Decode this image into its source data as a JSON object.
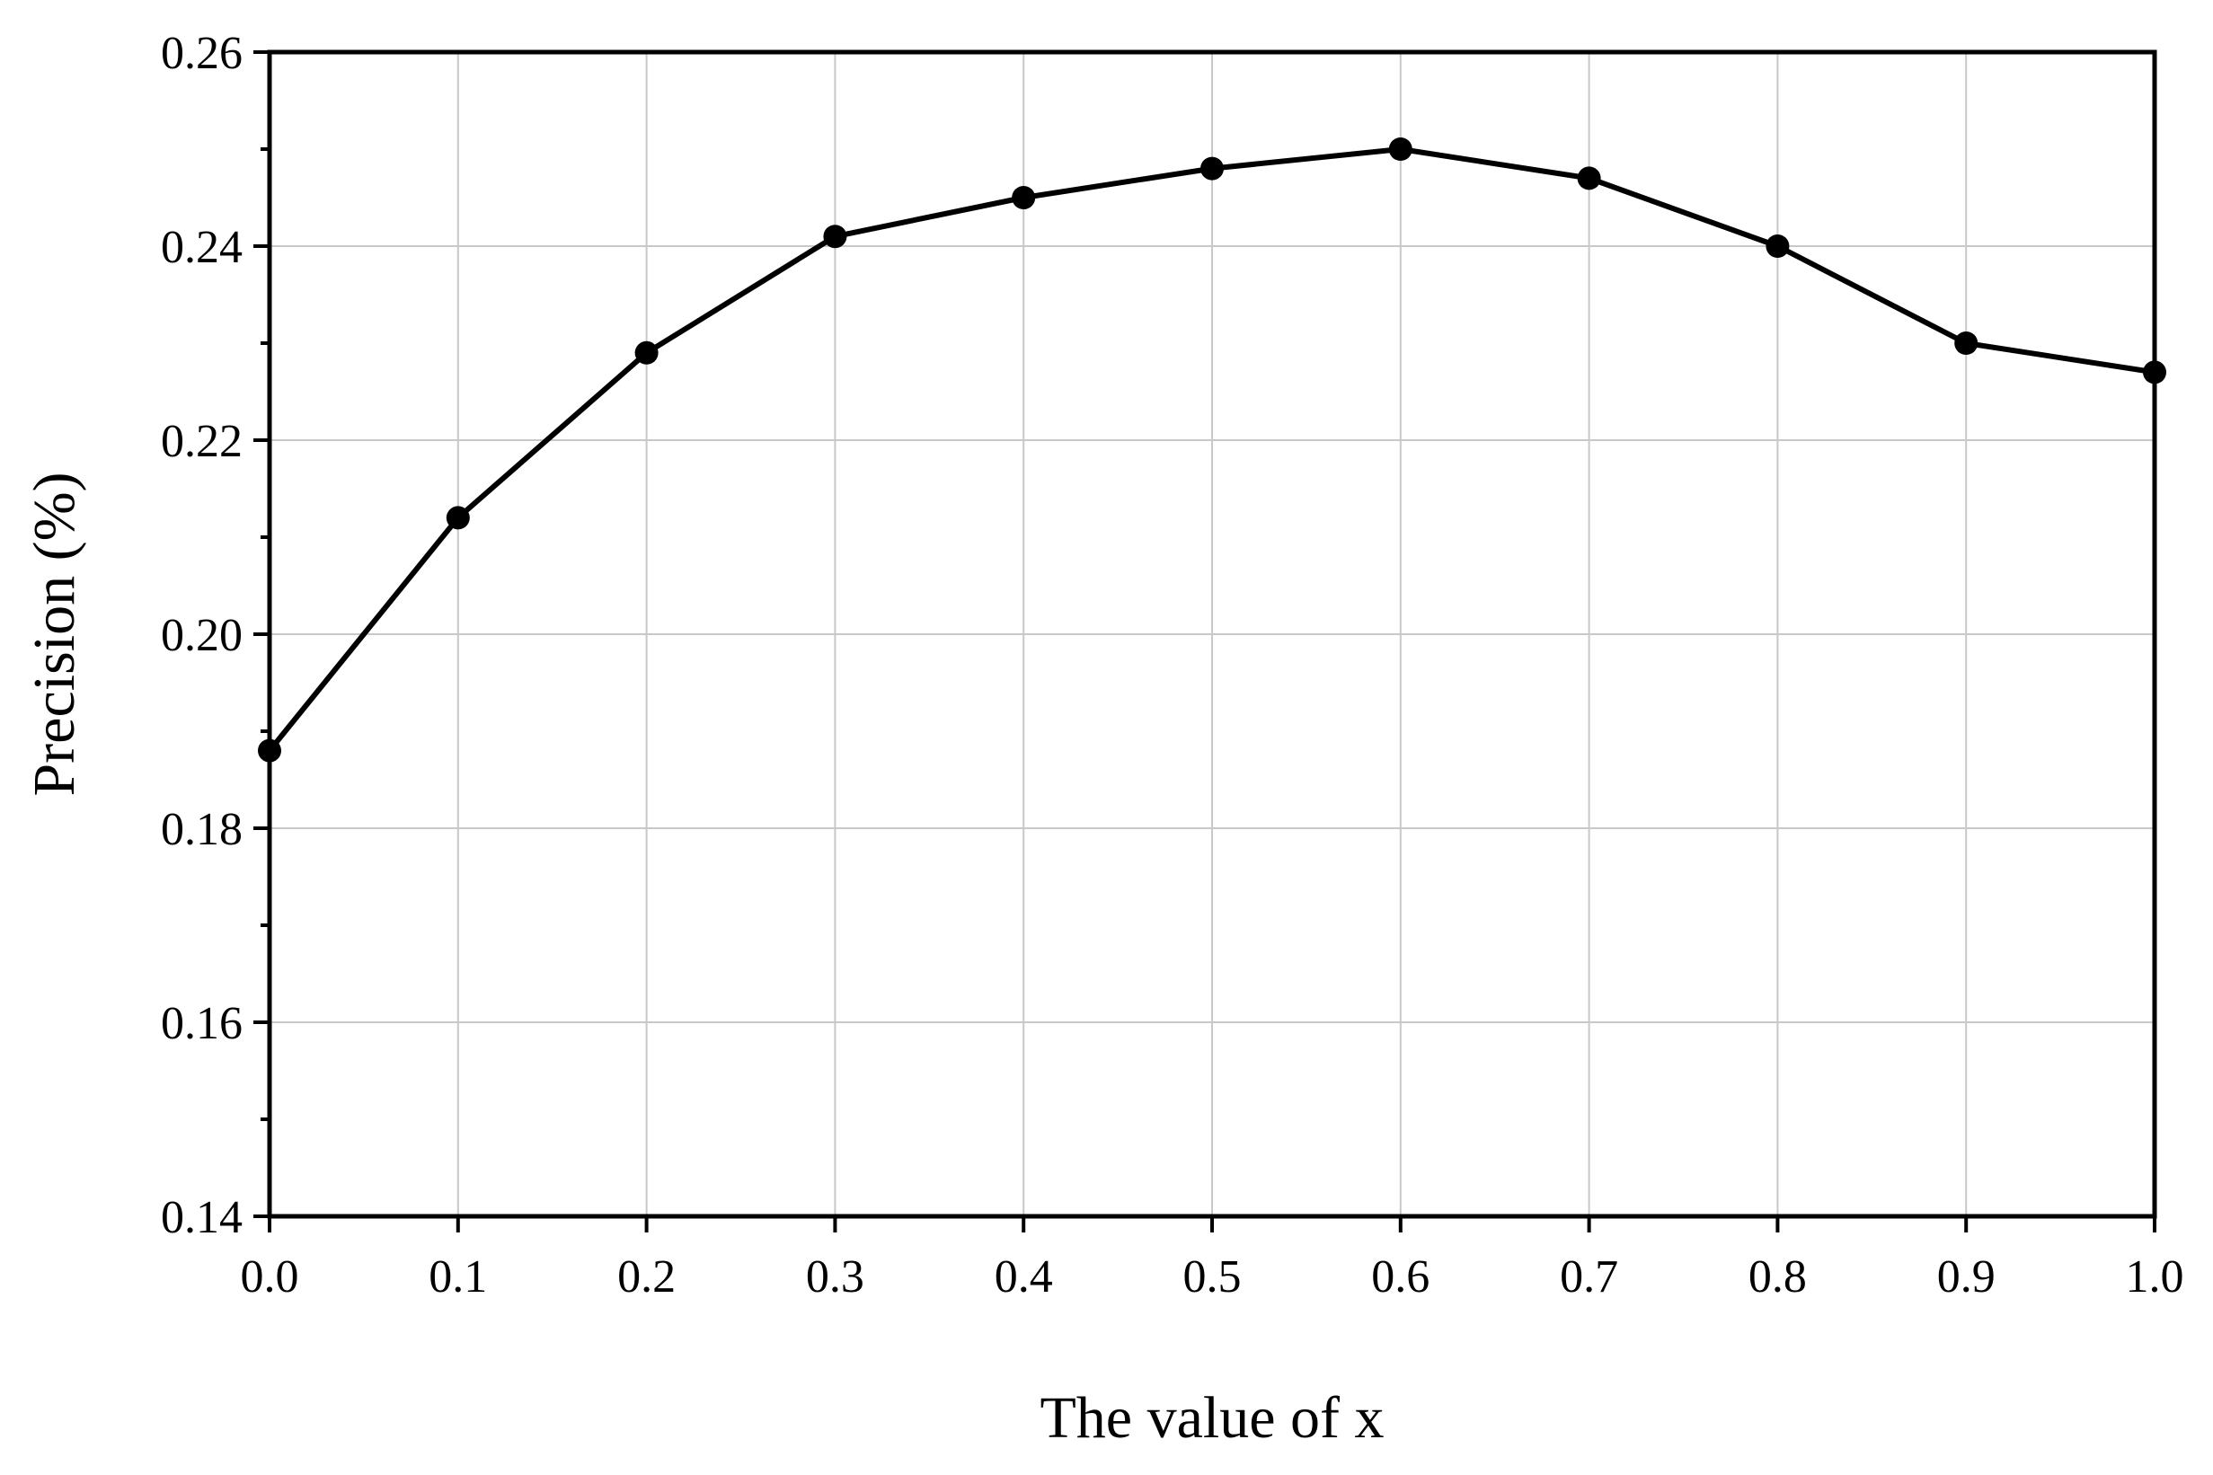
{
  "chart_data": {
    "type": "line",
    "title": "",
    "xlabel": "The value of x",
    "ylabel": "Precision (%)",
    "x": [
      0.0,
      0.1,
      0.2,
      0.3,
      0.4,
      0.5,
      0.6,
      0.7,
      0.8,
      0.9,
      1.0
    ],
    "series": [
      {
        "values": [
          0.188,
          0.212,
          0.229,
          0.241,
          0.245,
          0.248,
          0.25,
          0.247,
          0.24,
          0.23,
          0.227
        ],
        "color": "#000000",
        "marker": "circle"
      }
    ],
    "xlim": [
      0.0,
      1.0
    ],
    "ylim": [
      0.14,
      0.26
    ],
    "x_ticks": [
      "0.0",
      "0.1",
      "0.2",
      "0.3",
      "0.4",
      "0.5",
      "0.6",
      "0.7",
      "0.8",
      "0.9",
      "1.0"
    ],
    "y_ticks": [
      "0.14",
      "0.16",
      "0.18",
      "0.20",
      "0.22",
      "0.24",
      "0.26"
    ],
    "grid": true,
    "grid_color": "#c8c8c8",
    "legend": "none"
  }
}
